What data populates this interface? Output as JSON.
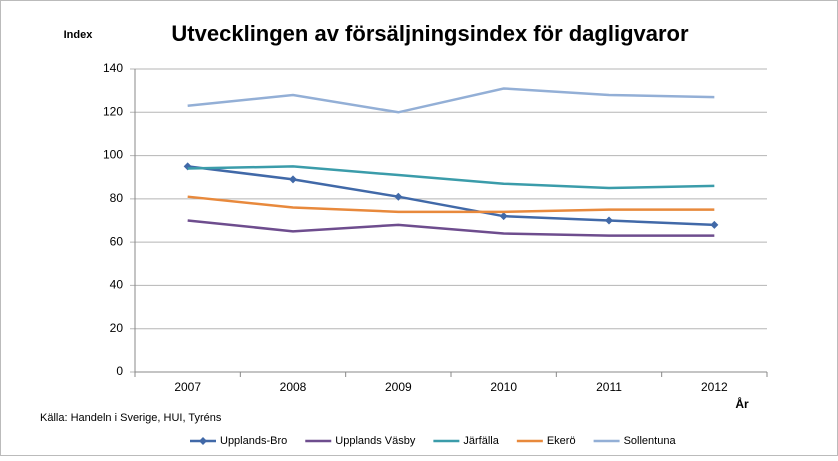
{
  "chart_data": {
    "type": "line",
    "title": "Utvecklingen av försäljningsindex för dagligvaror",
    "y_label": "Index",
    "x_label": "År",
    "source": "Källa: Handeln i Sverige, HUI, Tyréns",
    "categories": [
      "2007",
      "2008",
      "2009",
      "2010",
      "2011",
      "2012"
    ],
    "series": [
      {
        "name": "Upplands-Bro",
        "color": "#4169a8",
        "marker": "diamond",
        "values": [
          95,
          89,
          81,
          72,
          70,
          68
        ]
      },
      {
        "name": "Upplands Väsby",
        "color": "#6e4d8e",
        "values": [
          70,
          65,
          68,
          64,
          63,
          63
        ]
      },
      {
        "name": "Järfälla",
        "color": "#3b9caa",
        "values": [
          94,
          95,
          91,
          87,
          85,
          86
        ]
      },
      {
        "name": "Ekerö",
        "color": "#e8893c",
        "values": [
          81,
          76,
          74,
          74,
          75,
          75
        ]
      },
      {
        "name": "Sollentuna",
        "color": "#93afd6",
        "values": [
          123,
          128,
          120,
          131,
          128,
          127
        ]
      }
    ],
    "ylim": [
      0,
      140
    ],
    "yticks": [
      0,
      20,
      40,
      60,
      80,
      100,
      120,
      140
    ],
    "grid": true,
    "legend": "bottom"
  }
}
